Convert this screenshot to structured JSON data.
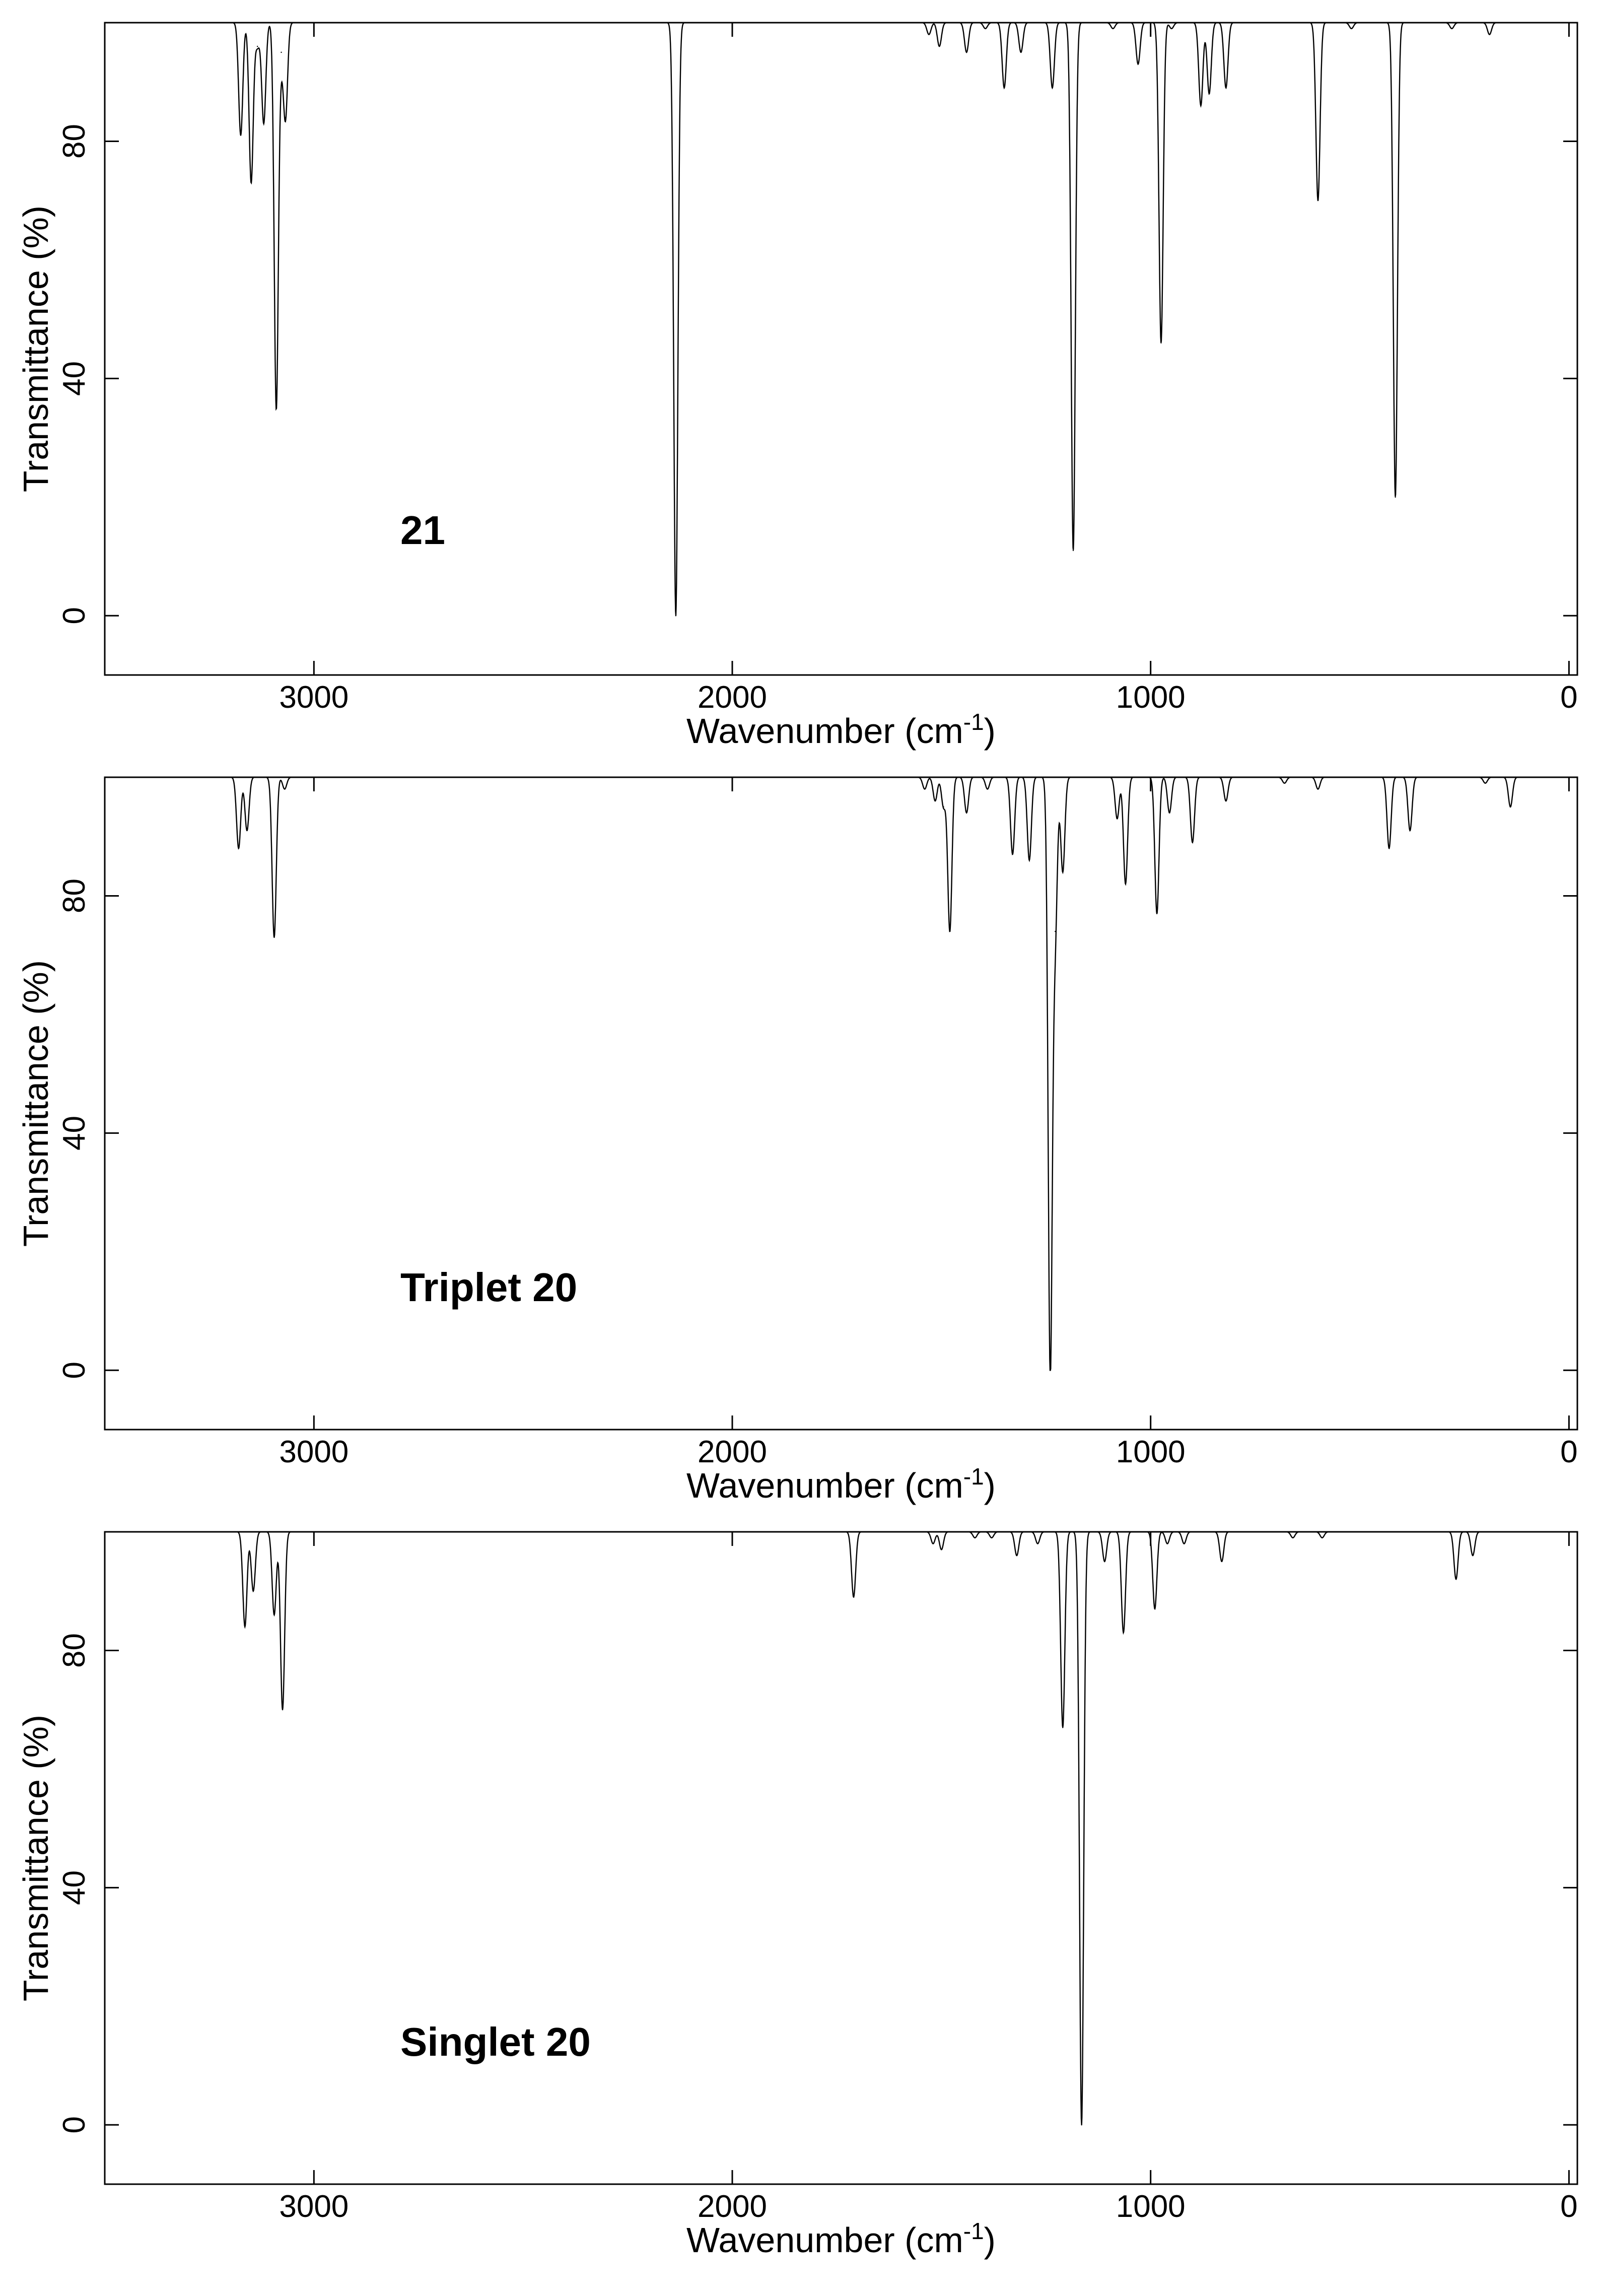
{
  "figure": {
    "title": "",
    "xlabel_text": "Wavenumber (cm",
    "xlabel_sup": "-1",
    "xlabel_close": ")",
    "ylabel": "Transmittance (%)"
  },
  "chart_data": [
    {
      "type": "line",
      "label": "21",
      "xlabel": "Wavenumber (cm-1)",
      "ylabel": "Transmittance (%)",
      "xlim": [
        3500,
        -20
      ],
      "ylim": [
        -10,
        100
      ],
      "xticks": [
        3000,
        2000,
        1000,
        0
      ],
      "yticks": [
        0,
        40,
        80
      ],
      "grid": false,
      "peaks": [
        {
          "x": 3175,
          "y": 81
        },
        {
          "x": 3150,
          "y": 73
        },
        {
          "x": 3135,
          "y": 96
        },
        {
          "x": 3120,
          "y": 83
        },
        {
          "x": 3090,
          "y": 35
        },
        {
          "x": 3078,
          "y": 95
        },
        {
          "x": 3068,
          "y": 84
        },
        {
          "x": 2135,
          "y": 0
        },
        {
          "x": 1530,
          "y": 98
        },
        {
          "x": 1505,
          "y": 96
        },
        {
          "x": 1440,
          "y": 95
        },
        {
          "x": 1395,
          "y": 99
        },
        {
          "x": 1350,
          "y": 89
        },
        {
          "x": 1310,
          "y": 95
        },
        {
          "x": 1235,
          "y": 89
        },
        {
          "x": 1185,
          "y": 11
        },
        {
          "x": 1090,
          "y": 99
        },
        {
          "x": 1030,
          "y": 93
        },
        {
          "x": 975,
          "y": 46
        },
        {
          "x": 950,
          "y": 99
        },
        {
          "x": 880,
          "y": 86
        },
        {
          "x": 860,
          "y": 88
        },
        {
          "x": 820,
          "y": 89
        },
        {
          "x": 600,
          "y": 70
        },
        {
          "x": 520,
          "y": 99
        },
        {
          "x": 415,
          "y": 20
        },
        {
          "x": 280,
          "y": 99
        },
        {
          "x": 190,
          "y": 98
        }
      ]
    },
    {
      "type": "line",
      "label": "Triplet 20",
      "xlabel": "Wavenumber (cm-1)",
      "ylabel": "Transmittance (%)",
      "xlim": [
        3500,
        -20
      ],
      "ylim": [
        -10,
        100
      ],
      "xticks": [
        3000,
        2000,
        1000,
        0
      ],
      "yticks": [
        0,
        40,
        80
      ],
      "grid": false,
      "peaks": [
        {
          "x": 3180,
          "y": 88
        },
        {
          "x": 3160,
          "y": 91
        },
        {
          "x": 3095,
          "y": 73
        },
        {
          "x": 3070,
          "y": 98
        },
        {
          "x": 1540,
          "y": 98
        },
        {
          "x": 1515,
          "y": 96
        },
        {
          "x": 1495,
          "y": 95
        },
        {
          "x": 1480,
          "y": 74
        },
        {
          "x": 1440,
          "y": 94
        },
        {
          "x": 1390,
          "y": 98
        },
        {
          "x": 1330,
          "y": 87
        },
        {
          "x": 1290,
          "y": 86
        },
        {
          "x": 1240,
          "y": 0
        },
        {
          "x": 1228,
          "y": 74
        },
        {
          "x": 1210,
          "y": 84
        },
        {
          "x": 1080,
          "y": 93
        },
        {
          "x": 1060,
          "y": 82
        },
        {
          "x": 985,
          "y": 77
        },
        {
          "x": 955,
          "y": 94
        },
        {
          "x": 900,
          "y": 89
        },
        {
          "x": 820,
          "y": 96
        },
        {
          "x": 680,
          "y": 99
        },
        {
          "x": 600,
          "y": 98
        },
        {
          "x": 430,
          "y": 88
        },
        {
          "x": 380,
          "y": 91
        },
        {
          "x": 200,
          "y": 99
        },
        {
          "x": 140,
          "y": 95
        }
      ]
    },
    {
      "type": "line",
      "label": "Singlet 20",
      "xlabel": "Wavenumber (cm-1)",
      "ylabel": "Transmittance (%)",
      "xlim": [
        3500,
        -20
      ],
      "ylim": [
        -10,
        100
      ],
      "xticks": [
        3000,
        2000,
        1000,
        0
      ],
      "yticks": [
        0,
        40,
        80
      ],
      "grid": false,
      "peaks": [
        {
          "x": 3165,
          "y": 84
        },
        {
          "x": 3145,
          "y": 90
        },
        {
          "x": 3095,
          "y": 86
        },
        {
          "x": 3075,
          "y": 70
        },
        {
          "x": 1710,
          "y": 89
        },
        {
          "x": 1520,
          "y": 98
        },
        {
          "x": 1500,
          "y": 97
        },
        {
          "x": 1420,
          "y": 99
        },
        {
          "x": 1380,
          "y": 99
        },
        {
          "x": 1320,
          "y": 96
        },
        {
          "x": 1270,
          "y": 98
        },
        {
          "x": 1210,
          "y": 67
        },
        {
          "x": 1165,
          "y": 0
        },
        {
          "x": 1110,
          "y": 95
        },
        {
          "x": 1065,
          "y": 83
        },
        {
          "x": 990,
          "y": 87
        },
        {
          "x": 960,
          "y": 98
        },
        {
          "x": 920,
          "y": 98
        },
        {
          "x": 830,
          "y": 95
        },
        {
          "x": 660,
          "y": 99
        },
        {
          "x": 590,
          "y": 99
        },
        {
          "x": 270,
          "y": 92
        },
        {
          "x": 230,
          "y": 96
        },
        {
          "x": 80,
          "y": 100
        }
      ]
    }
  ]
}
